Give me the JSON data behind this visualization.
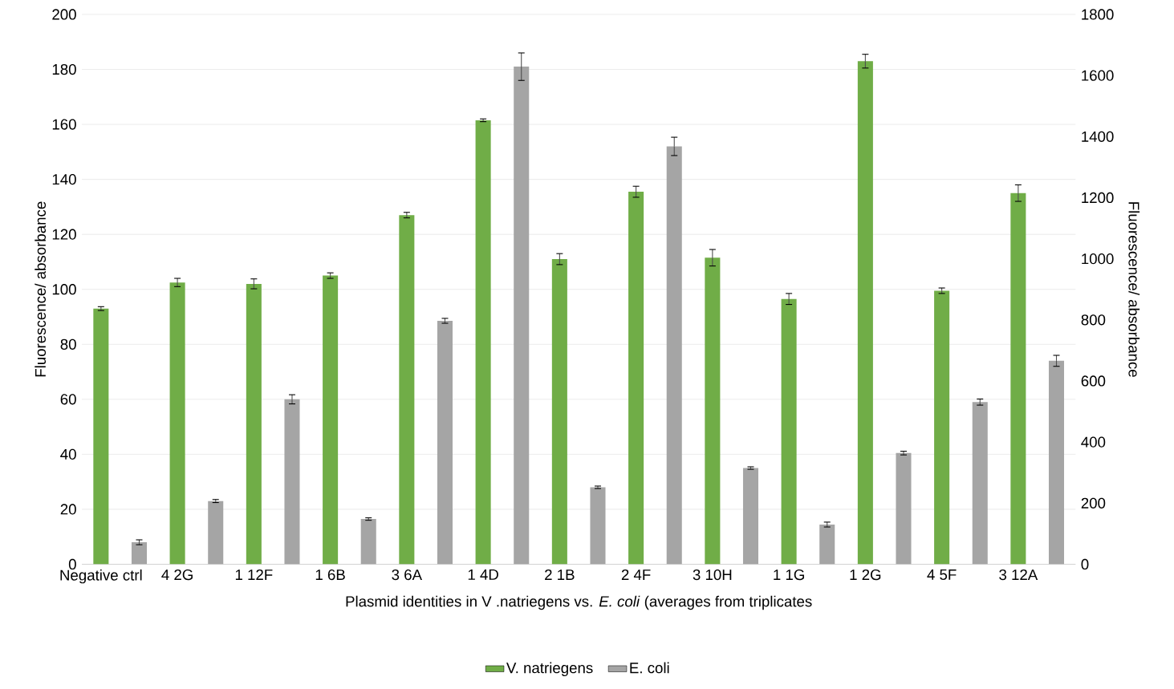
{
  "chart_data": {
    "type": "bar",
    "xlabel": "Plasmid identities in V .natriegens  vs. *E. coli* (averages from triplicates",
    "ylabel": "Fluorescence/ absorbance",
    "y2label": "Fluorescence/ absorbance",
    "categories": [
      "Negative ctrl",
      "4 2G",
      "1 12F",
      "1 6B",
      "3 6A",
      "1 4D",
      "2 1B",
      "2 4F",
      "3 10H",
      "1 1G",
      "1 2G",
      "4 5F",
      "3 12A"
    ],
    "series": [
      {
        "name": "V. natriegens",
        "color": "#70ad47",
        "axis": "y",
        "values": [
          93,
          102.5,
          102,
          105,
          127,
          161.5,
          111,
          135.5,
          111.5,
          96.5,
          183,
          99.5,
          135
        ],
        "errors": [
          0.7,
          1.5,
          1.8,
          1,
          1,
          0.5,
          2,
          2,
          3,
          2,
          2.5,
          1,
          3
        ]
      },
      {
        "name": "E. coli",
        "color": "#a5a5a5",
        "axis": "y2",
        "values": [
          72,
          207,
          540,
          148,
          797,
          1629,
          252,
          1368,
          315,
          130,
          364,
          531,
          666
        ],
        "errors": [
          8,
          5,
          15,
          4,
          8,
          45,
          4,
          30,
          4,
          8,
          6,
          10,
          18
        ]
      }
    ],
    "ylim": [
      0,
      200
    ],
    "yticks": [
      0,
      20,
      40,
      60,
      80,
      100,
      120,
      140,
      160,
      180,
      200
    ],
    "y2lim": [
      0,
      1800
    ],
    "y2ticks": [
      0,
      200,
      400,
      600,
      800,
      1000,
      1200,
      1400,
      1600,
      1800
    ],
    "grid": "y",
    "legend": "bottom"
  }
}
